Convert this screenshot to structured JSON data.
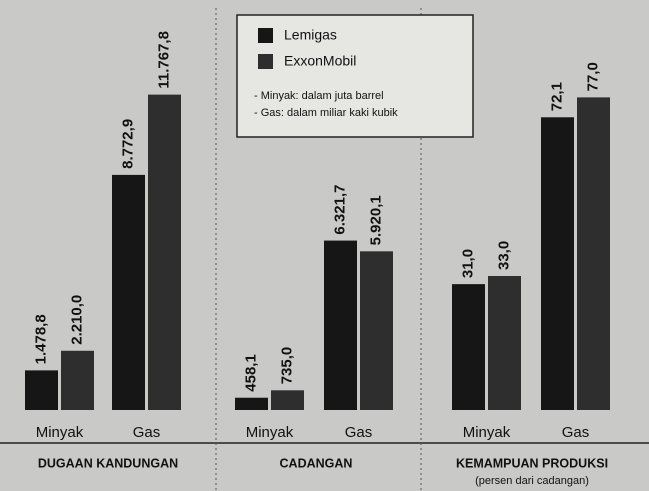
{
  "chart_data": [
    {
      "type": "bar",
      "title": "DUGAAN KANDUNGAN",
      "categories": [
        "Minyak",
        "Gas"
      ],
      "series": [
        {
          "name": "Lemigas",
          "color": "#161616",
          "values": [
            1478.8,
            8772.9
          ],
          "value_labels": [
            "1.478,8",
            "8.772,9"
          ]
        },
        {
          "name": "ExxonMobil",
          "color": "#2e2e2e",
          "values": [
            2210.0,
            11767.8
          ],
          "value_labels": [
            "2.210,0",
            "11.767,8"
          ]
        }
      ],
      "annotations": [
        "- Minyak: dalam juta barrel",
        "- Gas: dalam miliar kaki kubik"
      ]
    },
    {
      "type": "bar",
      "title": "CADANGAN",
      "categories": [
        "Minyak",
        "Gas"
      ],
      "series": [
        {
          "name": "Lemigas",
          "color": "#161616",
          "values": [
            458.1,
            6321.7
          ],
          "value_labels": [
            "458,1",
            "6.321,7"
          ]
        },
        {
          "name": "ExxonMobil",
          "color": "#2e2e2e",
          "values": [
            735.0,
            5920.1
          ],
          "value_labels": [
            "735,0",
            "5.920,1"
          ]
        }
      ]
    },
    {
      "type": "bar",
      "title": "KEMAMPUAN PRODUKSI",
      "subtitle": "(persen dari cadangan)",
      "categories": [
        "Minyak",
        "Gas"
      ],
      "series": [
        {
          "name": "Lemigas",
          "color": "#161616",
          "values": [
            31.0,
            72.1
          ],
          "value_labels": [
            "31,0",
            "72,1"
          ]
        },
        {
          "name": "ExxonMobil",
          "color": "#2e2e2e",
          "values": [
            33.0,
            77.0
          ],
          "value_labels": [
            "33,0",
            "77,0"
          ]
        }
      ]
    }
  ]
}
